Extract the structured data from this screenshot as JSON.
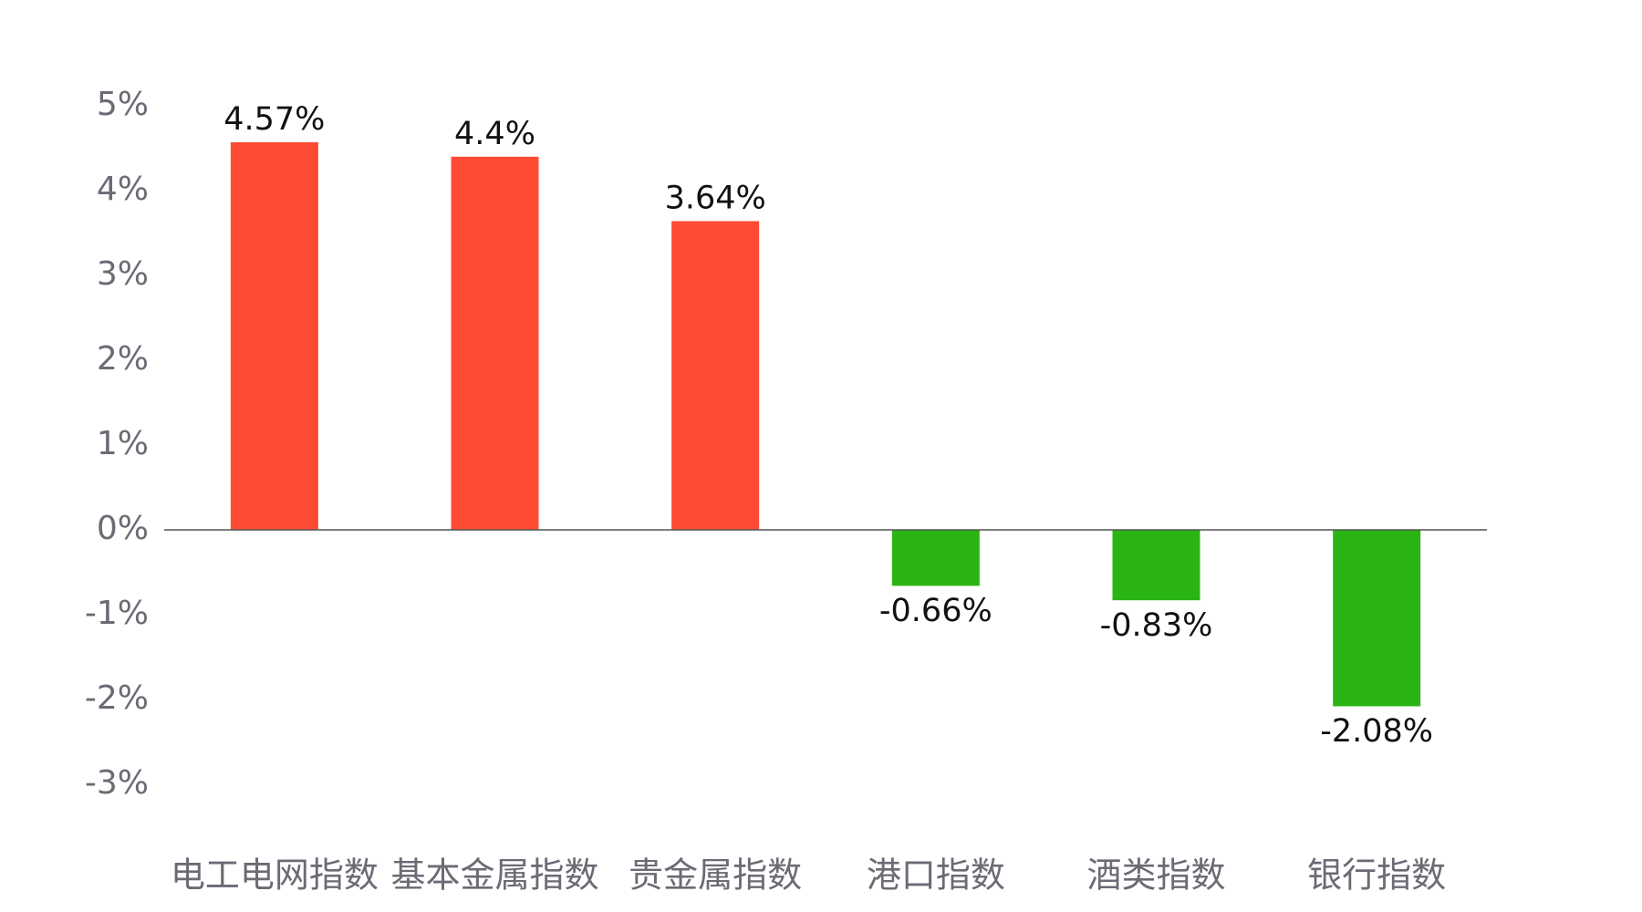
{
  "chart_data": {
    "type": "bar",
    "title": "",
    "xlabel": "",
    "ylabel": "",
    "categories": [
      "电工电网指数",
      "基本金属指数",
      "贵金属指数",
      "港口指数",
      "酒类指数",
      "银行指数"
    ],
    "values": [
      4.57,
      4.4,
      3.64,
      -0.66,
      -0.83,
      -2.08
    ],
    "data_labels": [
      "4.57%",
      "4.4%",
      "3.64%",
      "-0.66%",
      "-0.83%",
      "-2.08%"
    ],
    "ylim": [
      -3,
      5
    ],
    "yticks": [
      5,
      4,
      3,
      2,
      1,
      0,
      -1,
      -2,
      -3
    ],
    "ytick_labels": [
      "5%",
      "4%",
      "3%",
      "2%",
      "1%",
      "0%",
      "-1%",
      "-2%",
      "-3%"
    ],
    "grid": false,
    "legend": "none",
    "colors": {
      "positive": "#FF4B33",
      "negative": "#2AB514",
      "axis": "#555555",
      "tick_text": "#6b6b75",
      "label_text": "#111111"
    }
  }
}
